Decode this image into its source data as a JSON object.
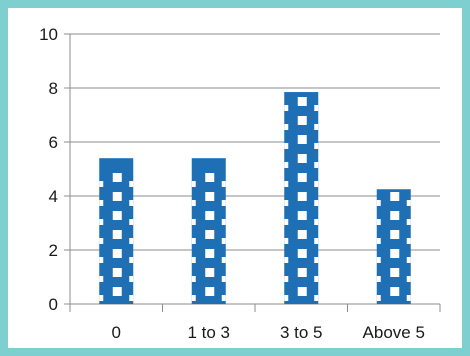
{
  "chart_data": {
    "type": "bar",
    "title": "",
    "xlabel": "",
    "ylabel": "",
    "categories": [
      "0",
      "1 to 3",
      "3 to 5",
      "Above 5"
    ],
    "values": [
      5.4,
      5.4,
      7.85,
      4.25
    ],
    "ylim": [
      0,
      10
    ],
    "yticks": [
      0,
      2,
      4,
      6,
      8,
      10
    ],
    "grid": "horizontal",
    "legend": "none",
    "bar_color": "#1f6fb4",
    "bar_fill": "pattern",
    "background": "#7ecfcf"
  }
}
